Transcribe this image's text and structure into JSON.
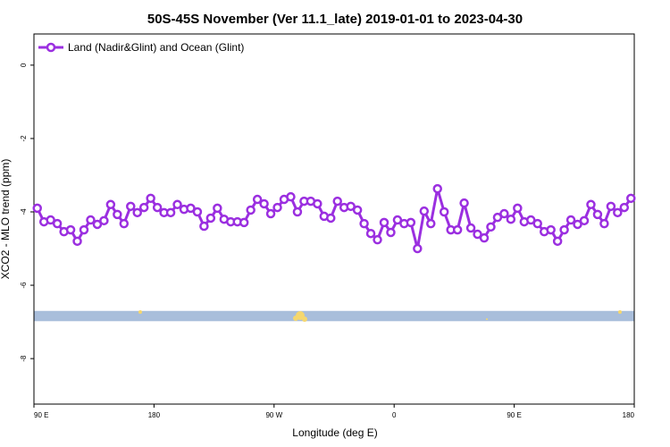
{
  "chart_data": {
    "type": "line",
    "title": "50S-45S November (Ver 11.1_late)   2019-01-01 to 2023-04-30",
    "xlabel": "Longitude (deg E)",
    "ylabel": "XCO2 - MLO trend (ppm)",
    "xlim": [
      90,
      540
    ],
    "ylim": [
      0.85,
      -9.24
    ],
    "xticks": [
      {
        "value": 90,
        "label": "90 E"
      },
      180,
      {
        "value": 270,
        "label": "90 W"
      },
      {
        "value": 360,
        "label": "0"
      },
      {
        "value": 450,
        "label": "90 E"
      },
      {
        "value": 540,
        "label": "180"
      }
    ],
    "yticks": [
      0,
      -2,
      -4,
      -6,
      -8
    ],
    "legend": "upper left",
    "band": {
      "ymin": -6.98,
      "ymax": -6.7,
      "color": "#a9bedb"
    },
    "x": [
      92.5,
      97.5,
      102.5,
      107.5,
      112.5,
      117.5,
      122.5,
      127.5,
      132.5,
      137.5,
      142.5,
      147.5,
      152.5,
      157.5,
      162.5,
      167.5,
      172.5,
      177.5,
      182.5,
      187.5,
      192.5,
      197.5,
      202.5,
      207.5,
      212.5,
      217.5,
      222.5,
      227.5,
      232.5,
      237.5,
      242.5,
      247.5,
      252.5,
      257.5,
      262.5,
      267.5,
      272.5,
      277.5,
      282.5,
      287.5,
      292.5,
      297.5,
      302.5,
      307.5,
      312.5,
      317.5,
      322.5,
      327.5,
      332.5,
      337.5,
      342.5,
      347.5,
      352.5,
      357.5,
      362.5,
      367.5,
      372.5,
      377.5,
      382.5,
      387.5,
      392.5,
      397.5,
      402.5,
      407.5,
      412.5,
      417.5,
      422.5,
      427.5,
      432.5,
      437.5,
      442.5,
      447.5,
      452.5,
      457.5,
      462.5,
      467.5,
      472.5,
      477.5,
      482.5,
      487.5,
      492.5,
      497.5,
      502.5,
      507.5,
      512.5,
      517.5,
      522.5,
      527.5,
      532.5,
      537.5
    ],
    "series": [
      {
        "name": "Land (Nadir&Glint) and Ocean (Glint)",
        "color": "#9b2fe0",
        "values": [
          -3.9,
          -4.27,
          -4.22,
          -4.32,
          -4.54,
          -4.49,
          -4.8,
          -4.49,
          -4.22,
          -4.34,
          -4.24,
          -3.8,
          -4.07,
          -4.32,
          -3.85,
          -4.02,
          -3.88,
          -3.63,
          -3.88,
          -4.02,
          -4.02,
          -3.8,
          -3.93,
          -3.9,
          -4.0,
          -4.39,
          -4.17,
          -3.9,
          -4.2,
          -4.27,
          -4.27,
          -4.29,
          -3.95,
          -3.66,
          -3.78,
          -4.05,
          -3.88,
          -3.66,
          -3.59,
          -4.0,
          -3.71,
          -3.71,
          -3.78,
          -4.12,
          -4.17,
          -3.71,
          -3.88,
          -3.85,
          -3.95,
          -4.32,
          -4.59,
          -4.76,
          -4.29,
          -4.56,
          -4.22,
          -4.32,
          -4.29,
          -5.0,
          -3.98,
          -4.32,
          -3.37,
          -4.0,
          -4.49,
          -4.49,
          -3.76,
          -4.44,
          -4.61,
          -4.71,
          -4.41,
          -4.15,
          -4.05,
          -4.2,
          -3.9,
          -4.27,
          -4.22,
          -4.32,
          -4.54,
          -4.49,
          -4.8,
          -4.49,
          -4.22,
          -4.34,
          -4.24,
          -3.8,
          -4.07,
          -4.32,
          -3.85,
          -4.02,
          -3.88,
          -3.63
        ]
      }
    ]
  }
}
